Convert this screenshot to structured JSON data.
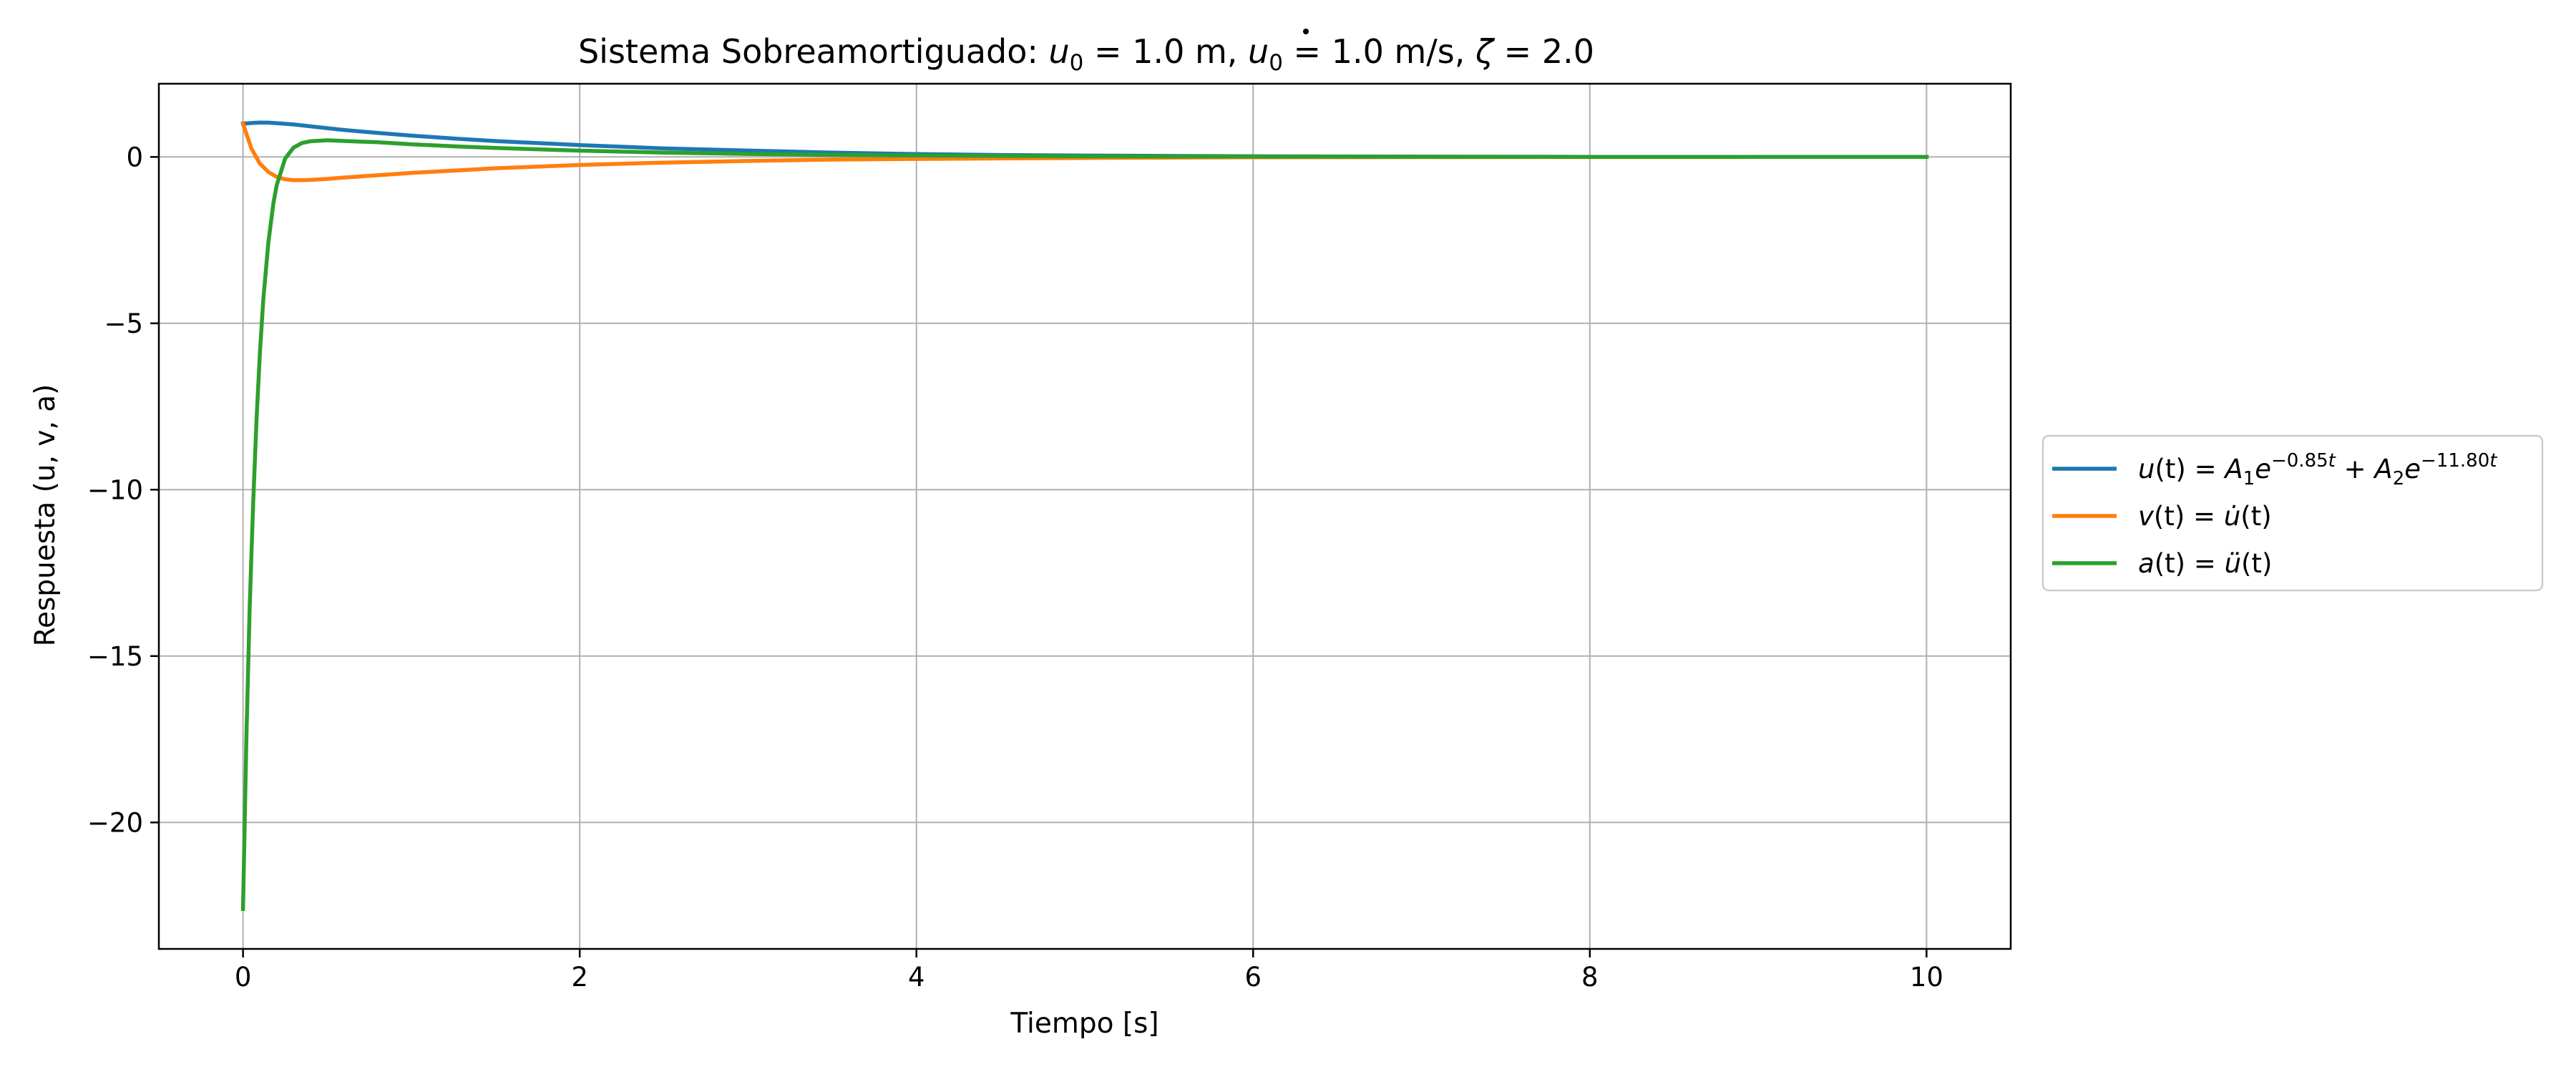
{
  "chart_data": {
    "type": "line",
    "title": {
      "prefix": "Sistema Sobreamortiguado: ",
      "u0_sym": "u",
      "u0_sub": "0",
      "u0_rest": " = 1.0 m, ",
      "v0_sym": "u",
      "v0_sub": "0",
      "v0_rest": " = 1.0 m/s, ",
      "zeta_sym": "ζ",
      "zeta_rest": " = 2.0"
    },
    "xlabel": "Tiempo [s]",
    "ylabel": "Respuesta (u, v, a)",
    "xlim": [
      -0.5,
      10.5
    ],
    "ylim": [
      -23.8,
      2.2
    ],
    "xticks": [
      0,
      2,
      4,
      6,
      8,
      10
    ],
    "yticks": [
      0,
      -5,
      -10,
      -15,
      -20
    ],
    "xtick_labels": [
      "0",
      "2",
      "4",
      "6",
      "8",
      "10"
    ],
    "ytick_labels": [
      "0",
      "−5",
      "−10",
      "−15",
      "−20"
    ],
    "grid": true,
    "legend_position": "center-right outside",
    "series": [
      {
        "name": "u(t) = A1 e^{-0.85t} + A2 e^{-11.80t}",
        "color": "#1f77b4",
        "x": [
          0,
          0.05,
          0.1,
          0.15,
          0.2,
          0.3,
          0.4,
          0.5,
          0.6,
          0.8,
          1.0,
          1.25,
          1.5,
          2.0,
          2.5,
          3.0,
          3.5,
          4.0,
          4.5,
          5.0,
          6.0,
          7.0,
          8.0,
          9.0,
          10.0
        ],
        "y": [
          1.0,
          1.02,
          1.035,
          1.03,
          1.016,
          0.977,
          0.92,
          0.865,
          0.81,
          0.72,
          0.64,
          0.555,
          0.478,
          0.357,
          0.256,
          0.191,
          0.131,
          0.085,
          0.059,
          0.041,
          0.019,
          0.008,
          0.003,
          0.001,
          0.0
        ]
      },
      {
        "name": "v(t) = u̇(t)",
        "color": "#ff7f0e",
        "x": [
          0,
          0.05,
          0.1,
          0.15,
          0.2,
          0.25,
          0.3,
          0.35,
          0.4,
          0.5,
          0.6,
          0.8,
          1.0,
          1.25,
          1.5,
          2.0,
          2.5,
          3.0,
          3.5,
          4.0,
          5.0,
          6.0,
          7.0,
          8.0,
          9.0,
          10.0
        ],
        "y": [
          1.0,
          0.25,
          -0.2,
          -0.45,
          -0.6,
          -0.67,
          -0.7,
          -0.7,
          -0.69,
          -0.66,
          -0.62,
          -0.55,
          -0.48,
          -0.41,
          -0.34,
          -0.24,
          -0.17,
          -0.12,
          -0.08,
          -0.06,
          -0.03,
          -0.01,
          -0.004,
          -0.002,
          -0.001,
          0.0
        ]
      },
      {
        "name": "a(t) = ü(t)",
        "color": "#2ca02c",
        "x": [
          0,
          0.02,
          0.04,
          0.06,
          0.08,
          0.1,
          0.12,
          0.15,
          0.18,
          0.2,
          0.25,
          0.3,
          0.35,
          0.4,
          0.5,
          0.6,
          0.8,
          1.0,
          1.25,
          1.5,
          2.0,
          2.5,
          3.0,
          3.5,
          4.0,
          5.0,
          6.0,
          7.0,
          8.0,
          9.0,
          10.0
        ],
        "y": [
          -22.6,
          -17.5,
          -13.5,
          -10.4,
          -7.9,
          -5.9,
          -4.3,
          -2.6,
          -1.4,
          -0.85,
          -0.05,
          0.28,
          0.42,
          0.47,
          0.5,
          0.48,
          0.44,
          0.38,
          0.32,
          0.27,
          0.19,
          0.13,
          0.09,
          0.06,
          0.04,
          0.02,
          0.01,
          0.004,
          0.002,
          0.001,
          0.0
        ]
      }
    ],
    "legend": [
      {
        "u_lhs": "u",
        "u_arg": "(t) = ",
        "A1": "A",
        "A1_sub": "1",
        "e1": "e",
        "e1_sup": "−0.85",
        "e1_sup_t": "t",
        "plus": " + ",
        "A2": "A",
        "A2_sub": "2",
        "e2": "e",
        "e2_sup": "−11.80",
        "e2_sup_t": "t"
      },
      {
        "v_lhs": "v",
        "v_arg": "(t) = ",
        "v_rhs": "u̇",
        "v_rhs_arg": "(t)"
      },
      {
        "a_lhs": "a",
        "a_arg": "(t) = ",
        "a_rhs": "ü",
        "a_rhs_arg": "(t)"
      }
    ]
  }
}
